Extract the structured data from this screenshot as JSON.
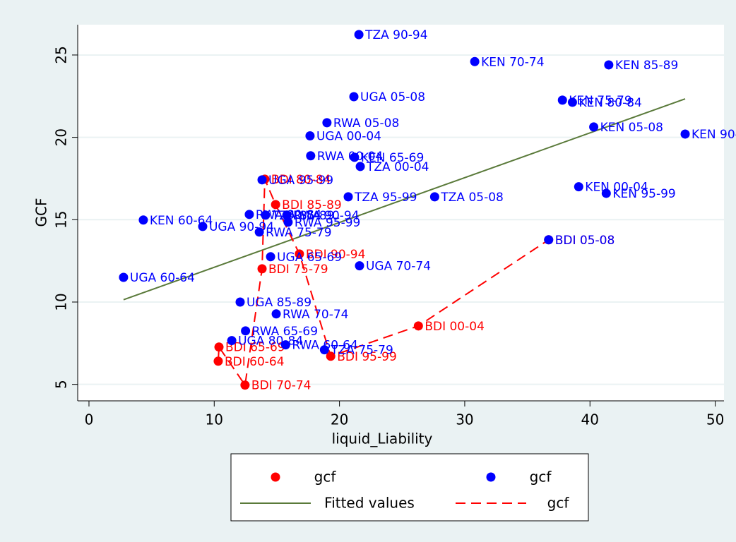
{
  "chart_data": {
    "type": "scatter",
    "xlabel": "liquid_Liability",
    "ylabel": "GCF",
    "xlim": [
      -0.9,
      50.7
    ],
    "ylim": [
      4.0,
      26.84
    ],
    "xticks": [
      0,
      10,
      20,
      30,
      40,
      50
    ],
    "yticks": [
      5,
      10,
      15,
      20,
      25
    ],
    "grid": true,
    "series": [
      {
        "name": "gcf",
        "color": "#ff0000",
        "style": "markers",
        "x": [
          10.32,
          10.38,
          12.46,
          13.82,
          14.04,
          14.9,
          16.8,
          19.3,
          26.3,
          36.7
        ],
        "values": [
          6.41,
          7.27,
          4.96,
          12.02,
          17.46,
          15.92,
          12.92,
          6.71,
          8.55,
          13.78
        ],
        "labels": [
          "BDI 60-64",
          "BDI 65-69",
          "BDI 70-74",
          "BDI 75-79",
          "BDI 80-84",
          "BDI 85-89",
          "BDI 90-94",
          "BDI 95-99",
          "BDI 00-04",
          "BDI 05-08"
        ]
      },
      {
        "name": "gcf",
        "color": "#0000ff",
        "style": "markers",
        "x": [
          21.55,
          30.8,
          41.5,
          21.15,
          37.8,
          38.6,
          19.0,
          17.65,
          40.3,
          47.6,
          17.7,
          21.2,
          21.66,
          13.82,
          20.7,
          27.6,
          39.1,
          41.3,
          4.34,
          9.08,
          12.8,
          14.1,
          15.8,
          15.9,
          13.6,
          14.5,
          21.6,
          2.76,
          36.7,
          12.07,
          14.95,
          12.5,
          11.4,
          15.7,
          18.8
        ],
        "values": [
          26.24,
          24.6,
          24.4,
          22.47,
          22.26,
          22.13,
          20.89,
          20.09,
          20.63,
          20.2,
          18.88,
          18.79,
          18.23,
          17.42,
          16.39,
          16.39,
          17.0,
          16.6,
          14.98,
          14.59,
          15.32,
          15.28,
          15.28,
          14.85,
          14.25,
          12.75,
          12.2,
          11.5,
          13.78,
          10.0,
          9.28,
          8.25,
          7.66,
          7.4,
          7.1
        ],
        "labels": [
          "TZA 90-94",
          "KEN 70-74",
          "KEN 85-89",
          "UGA 05-08",
          "KEN 75-79",
          "KEN 80-84",
          "RWA 05-08",
          "UGA 00-04",
          "KEN 05-08",
          "KEN 90-94",
          "RWA 00-04",
          "KEN 65-69",
          "TZA 00-04",
          "UGA 95-99",
          "TZA 95-99",
          "TZA 05-08",
          "KEN 00-04",
          "KEN 95-99",
          "KEN 60-64",
          "UGA 90-94",
          "RWA 80-84",
          "TZA 85-89",
          "RWA 90-94",
          "RWA 95-99",
          "RWA 75-79",
          "UGA 65-69",
          "UGA 70-74",
          "UGA 60-64",
          "BDI 05-08",
          "UGA 85-89",
          "RWA 70-74",
          "RWA 65-69",
          "UGA 80-84",
          "RWA 60-64",
          "TZA 75-79"
        ]
      },
      {
        "name": "Fitted values",
        "color": "#5a7a3a",
        "style": "line",
        "x": [
          2.76,
          47.6
        ],
        "values": [
          10.14,
          22.34
        ]
      },
      {
        "name": "gcf",
        "color": "#ff0000",
        "style": "dashed",
        "x": [
          10.32,
          10.38,
          12.46,
          13.82,
          14.04,
          14.9,
          16.8,
          19.3,
          26.3,
          36.7
        ],
        "values": [
          6.41,
          7.27,
          4.96,
          12.02,
          17.46,
          15.92,
          12.92,
          6.71,
          8.55,
          13.78
        ]
      }
    ]
  }
}
